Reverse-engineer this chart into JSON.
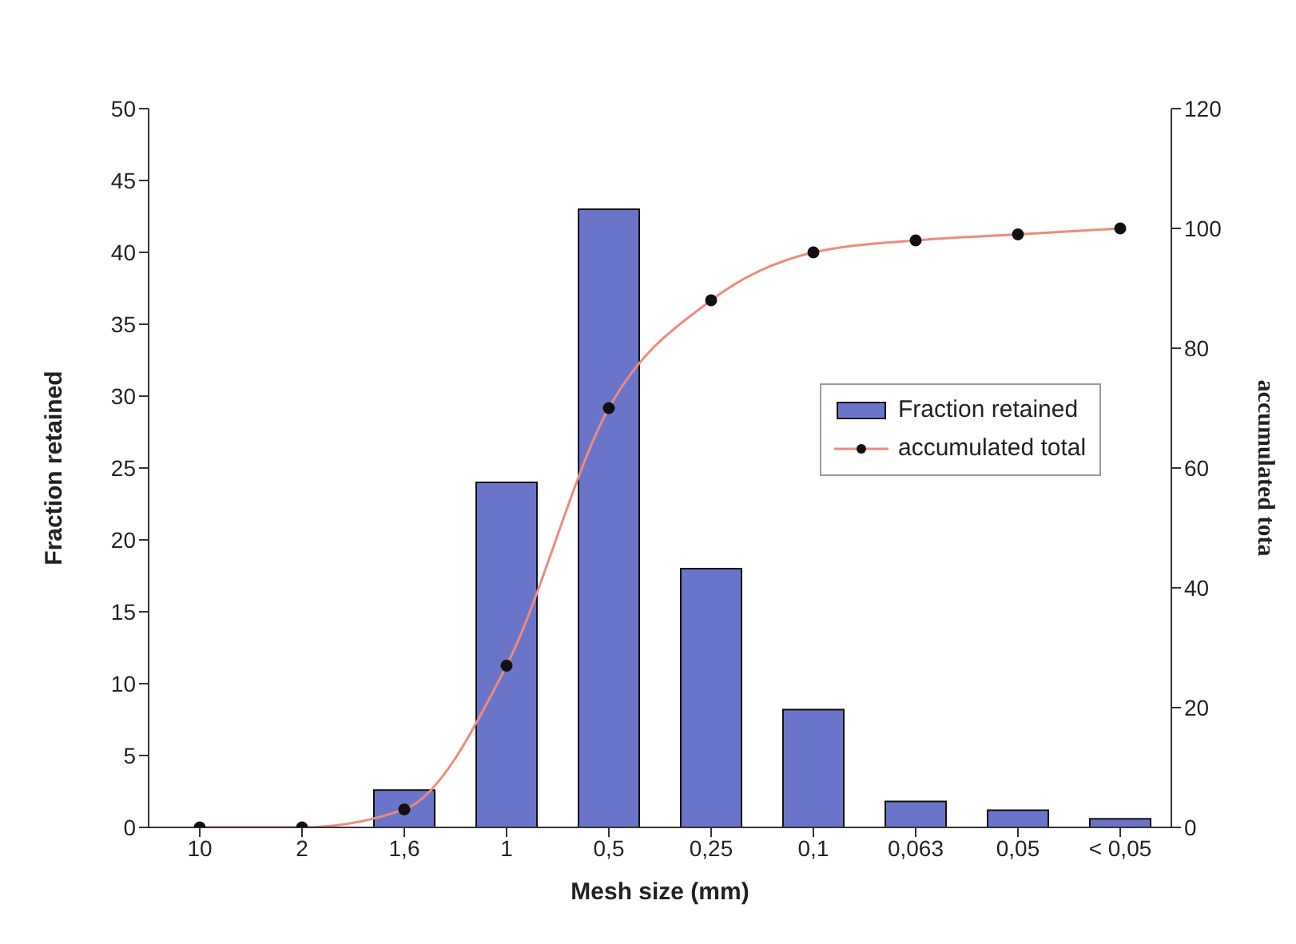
{
  "chart_data": {
    "type": "bar",
    "xlabel": "Mesh size (mm)",
    "ylabel": "Fraction retained",
    "y2label": "accumulated tota",
    "categories": [
      "10",
      "2",
      "1,6",
      "1",
      "0,5",
      "0,25",
      "0,1",
      "0,063",
      "0,05",
      "< 0,05"
    ],
    "series": [
      {
        "name": "Fraction retained",
        "color": "#6a75c9",
        "values": [
          0,
          0,
          2.6,
          24,
          43,
          18,
          8.2,
          1.8,
          1.2,
          0.6
        ]
      },
      {
        "name": "accumulated total",
        "type": "line",
        "axis": "y2",
        "color": "#ef8a7e",
        "values": [
          0,
          0,
          3,
          27,
          70,
          88,
          96,
          98,
          99,
          100
        ]
      }
    ],
    "ylim": [
      0,
      50
    ],
    "yticks": [
      0,
      5,
      10,
      15,
      20,
      25,
      30,
      35,
      40,
      45,
      50
    ],
    "y2lim": [
      0,
      120
    ],
    "y2ticks": [
      0,
      20,
      40,
      60,
      80,
      100,
      120
    ],
    "grid": false,
    "marker": "circle",
    "legend": "right"
  }
}
